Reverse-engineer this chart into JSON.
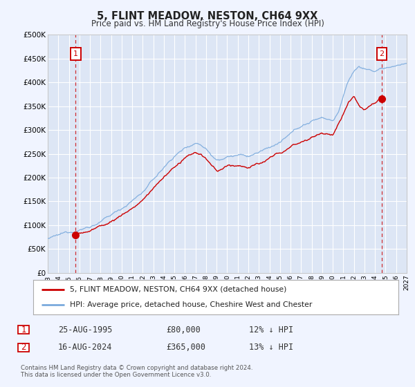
{
  "title": "5, FLINT MEADOW, NESTON, CH64 9XX",
  "subtitle": "Price paid vs. HM Land Registry's House Price Index (HPI)",
  "xlim": [
    1993,
    2027
  ],
  "ylim": [
    0,
    500000
  ],
  "yticks": [
    0,
    50000,
    100000,
    150000,
    200000,
    250000,
    300000,
    350000,
    400000,
    450000,
    500000
  ],
  "ytick_labels": [
    "£0",
    "£50K",
    "£100K",
    "£150K",
    "£200K",
    "£250K",
    "£300K",
    "£350K",
    "£400K",
    "£450K",
    "£500K"
  ],
  "xticks": [
    1993,
    1994,
    1995,
    1996,
    1997,
    1998,
    1999,
    2000,
    2001,
    2002,
    2003,
    2004,
    2005,
    2006,
    2007,
    2008,
    2009,
    2010,
    2011,
    2012,
    2013,
    2014,
    2015,
    2016,
    2017,
    2018,
    2019,
    2020,
    2021,
    2022,
    2023,
    2024,
    2025,
    2026,
    2027
  ],
  "background_color": "#f0f4ff",
  "plot_bg_color": "#dde6f5",
  "grid_color": "#ffffff",
  "sale1_x": 1995.65,
  "sale1_y": 80000,
  "sale2_x": 2024.62,
  "sale2_y": 365000,
  "vline1_x": 1995.65,
  "vline2_x": 2024.62,
  "red_line_color": "#cc0000",
  "blue_line_color": "#7aaadd",
  "marker_color": "#cc0000",
  "legend_label1": "5, FLINT MEADOW, NESTON, CH64 9XX (detached house)",
  "legend_label2": "HPI: Average price, detached house, Cheshire West and Chester",
  "annotation1_label": "1",
  "annotation2_label": "2",
  "box1_date": "25-AUG-1995",
  "box1_price": "£80,000",
  "box1_hpi": "12% ↓ HPI",
  "box2_date": "16-AUG-2024",
  "box2_price": "£365,000",
  "box2_hpi": "13% ↓ HPI",
  "footnote": "Contains HM Land Registry data © Crown copyright and database right 2024.\nThis data is licensed under the Open Government Licence v3.0."
}
